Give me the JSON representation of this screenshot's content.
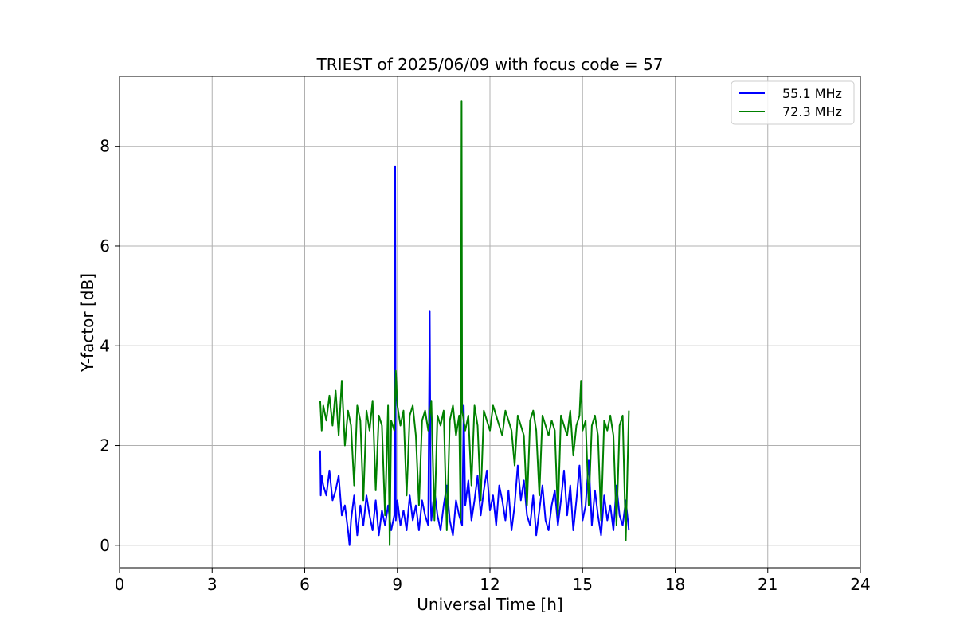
{
  "chart_data": {
    "type": "line",
    "title": "TRIEST of 2025/06/09 with focus code = 57",
    "xlabel": "Universal Time [h]",
    "ylabel": "Y-factor [dB]",
    "xlim": [
      0,
      24
    ],
    "ylim": [
      -0.45,
      9.4
    ],
    "xticks": [
      0,
      3,
      6,
      9,
      12,
      15,
      18,
      21,
      24
    ],
    "yticks": [
      0,
      2,
      4,
      6,
      8
    ],
    "grid": true,
    "legend_position": "top-right",
    "series": [
      {
        "name": "55.1 MHz",
        "color": "#0000ff",
        "x": [
          6.5,
          6.52,
          6.55,
          6.6,
          6.7,
          6.8,
          6.9,
          7.0,
          7.1,
          7.2,
          7.3,
          7.4,
          7.45,
          7.5,
          7.6,
          7.7,
          7.8,
          7.9,
          8.0,
          8.1,
          8.2,
          8.3,
          8.4,
          8.5,
          8.6,
          8.7,
          8.8,
          8.9,
          8.93,
          8.95,
          9.0,
          9.1,
          9.2,
          9.3,
          9.4,
          9.5,
          9.6,
          9.7,
          9.8,
          9.9,
          10.0,
          10.05,
          10.08,
          10.1,
          10.2,
          10.3,
          10.4,
          10.5,
          10.6,
          10.7,
          10.8,
          10.9,
          11.0,
          11.1,
          11.15,
          11.2,
          11.3,
          11.4,
          11.5,
          11.6,
          11.7,
          11.8,
          11.9,
          12.0,
          12.1,
          12.2,
          12.3,
          12.4,
          12.5,
          12.6,
          12.7,
          12.8,
          12.9,
          13.0,
          13.1,
          13.2,
          13.3,
          13.4,
          13.5,
          13.6,
          13.7,
          13.8,
          13.9,
          14.0,
          14.1,
          14.2,
          14.3,
          14.4,
          14.5,
          14.6,
          14.7,
          14.8,
          14.9,
          15.0,
          15.1,
          15.2,
          15.3,
          15.4,
          15.5,
          15.6,
          15.7,
          15.8,
          15.9,
          16.0,
          16.1,
          16.2,
          16.3,
          16.4,
          16.5
        ],
        "y": [
          1.9,
          1.0,
          1.4,
          1.2,
          1.0,
          1.5,
          0.9,
          1.1,
          1.4,
          0.6,
          0.8,
          0.3,
          0.0,
          0.5,
          1.0,
          0.2,
          0.8,
          0.4,
          1.0,
          0.6,
          0.3,
          0.9,
          0.2,
          0.7,
          0.4,
          0.8,
          0.3,
          0.6,
          7.6,
          0.5,
          0.9,
          0.4,
          0.7,
          0.3,
          1.0,
          0.5,
          0.8,
          0.3,
          0.9,
          0.6,
          0.4,
          4.7,
          0.9,
          0.5,
          1.1,
          0.6,
          0.3,
          0.8,
          1.2,
          0.5,
          0.2,
          0.9,
          0.6,
          0.4,
          2.8,
          0.8,
          1.3,
          0.5,
          0.9,
          1.4,
          0.6,
          1.1,
          1.5,
          0.7,
          1.0,
          0.4,
          1.2,
          0.9,
          0.5,
          1.1,
          0.3,
          0.8,
          1.6,
          0.9,
          1.3,
          0.6,
          0.4,
          1.0,
          0.2,
          0.7,
          1.2,
          0.5,
          0.3,
          0.8,
          1.1,
          0.4,
          0.9,
          1.5,
          0.6,
          1.2,
          0.3,
          0.9,
          1.6,
          0.5,
          0.8,
          1.7,
          0.4,
          1.1,
          0.6,
          0.2,
          1.0,
          0.5,
          0.8,
          0.3,
          1.2,
          0.6,
          0.4,
          0.9,
          0.3
        ]
      },
      {
        "name": "72.3 MHz",
        "color": "#008000",
        "x": [
          6.5,
          6.55,
          6.6,
          6.7,
          6.8,
          6.9,
          7.0,
          7.1,
          7.2,
          7.3,
          7.4,
          7.5,
          7.6,
          7.7,
          7.8,
          7.9,
          8.0,
          8.1,
          8.2,
          8.3,
          8.4,
          8.5,
          8.6,
          8.7,
          8.75,
          8.8,
          8.9,
          8.95,
          9.0,
          9.1,
          9.2,
          9.3,
          9.4,
          9.5,
          9.6,
          9.7,
          9.8,
          9.9,
          10.0,
          10.1,
          10.2,
          10.3,
          10.4,
          10.5,
          10.6,
          10.7,
          10.8,
          10.9,
          11.0,
          11.05,
          11.08,
          11.1,
          11.2,
          11.3,
          11.4,
          11.5,
          11.6,
          11.7,
          11.8,
          11.9,
          12.0,
          12.1,
          12.2,
          12.3,
          12.4,
          12.5,
          12.6,
          12.7,
          12.8,
          12.9,
          13.0,
          13.1,
          13.2,
          13.3,
          13.4,
          13.5,
          13.6,
          13.7,
          13.8,
          13.9,
          14.0,
          14.1,
          14.2,
          14.3,
          14.4,
          14.5,
          14.6,
          14.7,
          14.8,
          14.9,
          14.95,
          15.0,
          15.1,
          15.2,
          15.3,
          15.4,
          15.5,
          15.6,
          15.7,
          15.8,
          15.9,
          16.0,
          16.1,
          16.2,
          16.3,
          16.4,
          16.5
        ],
        "y": [
          2.9,
          2.3,
          2.8,
          2.5,
          3.0,
          2.4,
          3.1,
          2.2,
          3.3,
          2.0,
          2.7,
          2.4,
          1.2,
          2.8,
          2.5,
          0.9,
          2.7,
          2.3,
          2.9,
          1.1,
          2.6,
          2.4,
          0.6,
          2.8,
          0.0,
          2.5,
          2.3,
          3.5,
          2.8,
          2.4,
          2.7,
          1.0,
          2.6,
          2.8,
          2.2,
          0.8,
          2.5,
          2.7,
          2.3,
          2.9,
          0.5,
          2.6,
          2.4,
          2.7,
          0.3,
          2.5,
          2.8,
          2.2,
          2.6,
          0.5,
          8.9,
          2.7,
          2.3,
          2.6,
          1.2,
          2.8,
          2.4,
          0.9,
          2.7,
          2.5,
          2.3,
          2.8,
          2.6,
          2.4,
          2.2,
          2.7,
          2.5,
          2.3,
          1.6,
          2.6,
          2.4,
          2.2,
          0.8,
          2.5,
          2.7,
          2.3,
          1.0,
          2.6,
          2.4,
          2.2,
          2.5,
          2.3,
          0.6,
          2.6,
          2.4,
          2.2,
          2.7,
          1.8,
          2.4,
          2.6,
          3.3,
          2.3,
          2.5,
          0.8,
          2.4,
          2.6,
          2.2,
          0.5,
          2.5,
          2.3,
          2.6,
          2.2,
          0.4,
          2.4,
          2.6,
          0.1,
          2.7
        ]
      }
    ]
  }
}
